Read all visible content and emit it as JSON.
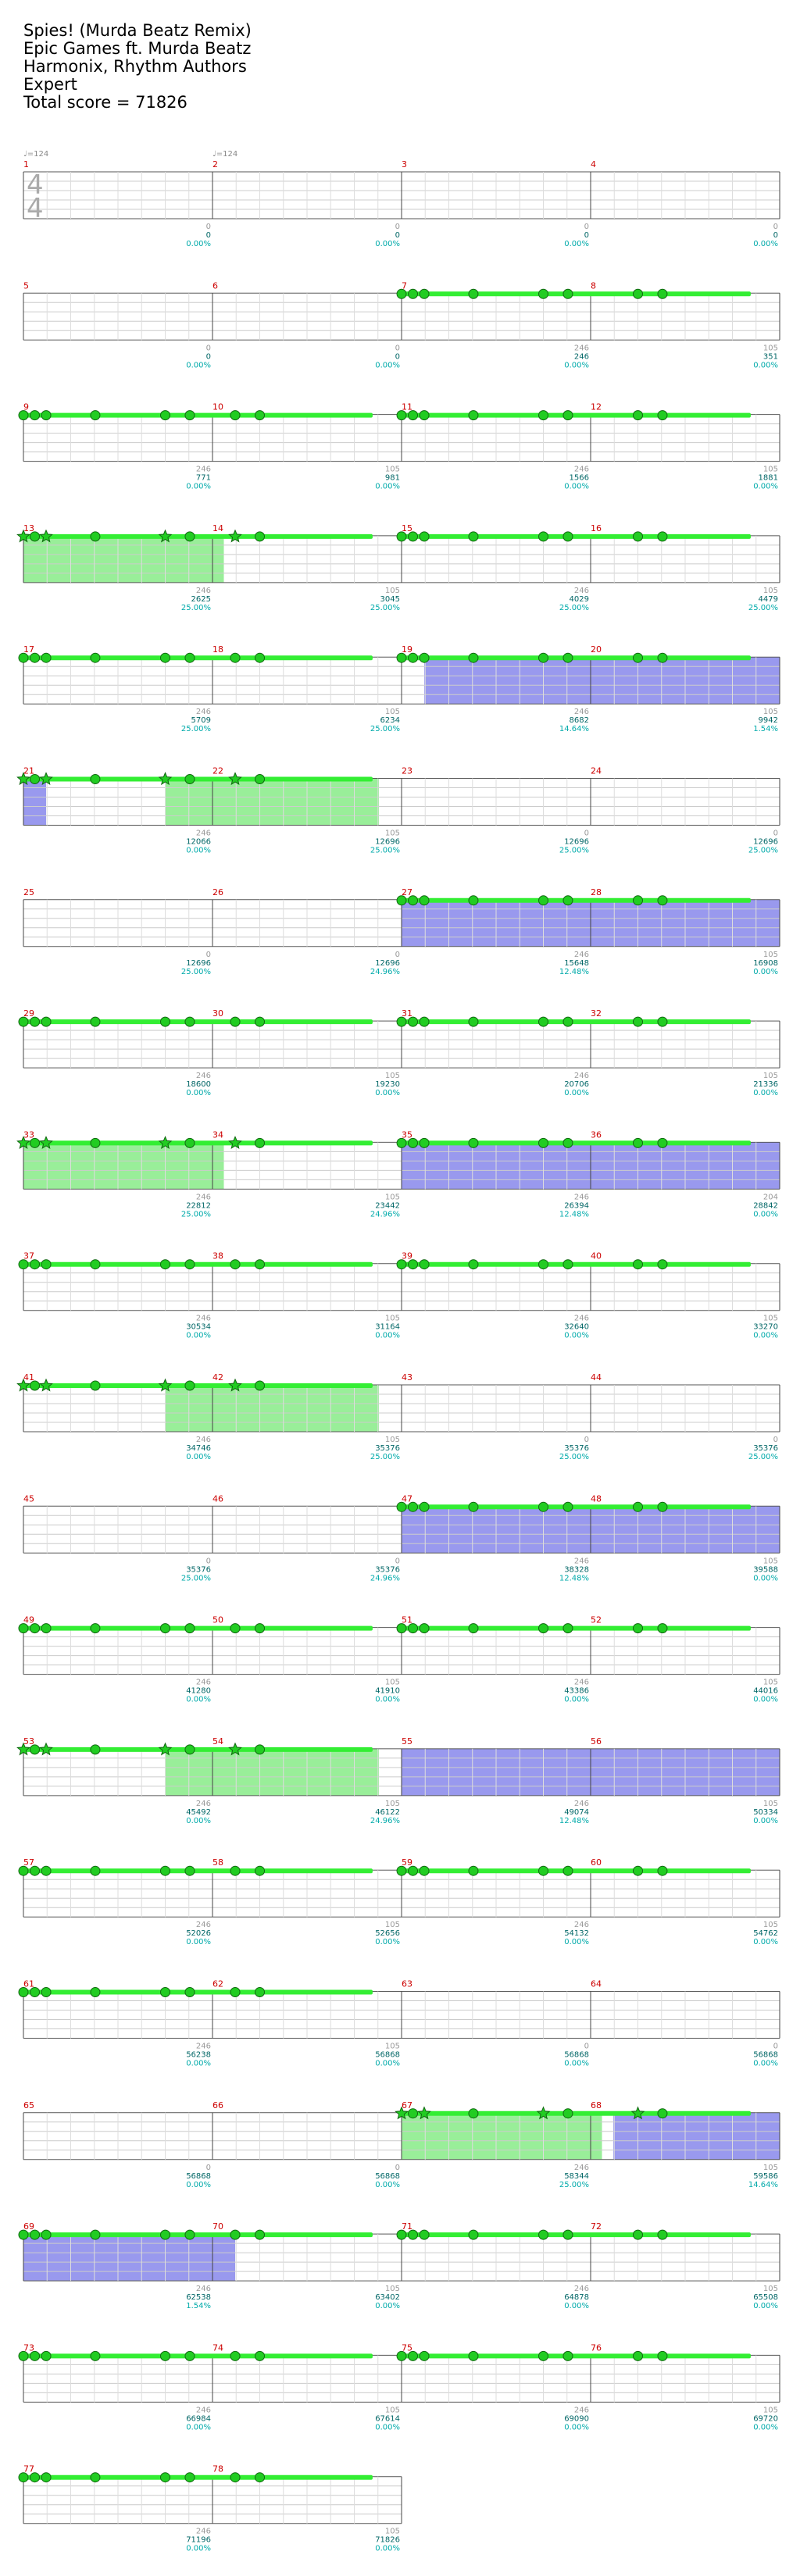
{
  "song": {
    "title": "Spies! (Murda Beatz Remix)",
    "artist": "Epic Games ft. Murda Beatz",
    "charter": "Harmonix, Rhythm Authors",
    "difficulty": "Expert",
    "total_score": "Total score = 71826"
  },
  "tempo_markers": [
    {
      "measure": 1,
      "label": "♩=124"
    },
    {
      "measure": 2,
      "label": "♩=124"
    }
  ],
  "time_signature": {
    "top": "4",
    "bottom": "4"
  },
  "colors": {
    "note": "#22cc22",
    "sustain": "#33ee33",
    "star_power": "#99ee99",
    "overdrive": "#9999ee",
    "measure_number": "#cc0000",
    "score": "#006666",
    "percent": "#00aaaa"
  },
  "pattern_a": [
    0,
    0.06,
    0.12,
    0.38,
    0.75,
    0.88,
    1.25,
    1.38
  ],
  "pattern_b": [
    0,
    0.06,
    0.12,
    0.38,
    0.75,
    0.88,
    1.12,
    1.25
  ],
  "lanes_in_pattern": {
    "pattern_a": [
      1,
      1,
      1,
      1,
      1,
      1,
      1,
      1
    ],
    "pattern_b": [
      1,
      1,
      1,
      1,
      1,
      1,
      1,
      1
    ]
  },
  "chart_data": {
    "type": "table",
    "systems": [
      {
        "measures": [
          1,
          2,
          3,
          4
        ],
        "notes": [],
        "sp_regions": [],
        "od_regions": [],
        "labels": [
          {
            "g": "0",
            "s": "0",
            "p": "0.00%"
          },
          {
            "g": "0",
            "s": "0",
            "p": "0.00%"
          },
          {
            "g": "0",
            "s": "0",
            "p": "0.00%"
          },
          {
            "g": "0",
            "s": "0",
            "p": "0.00%"
          }
        ]
      },
      {
        "measures": [
          5,
          6,
          7,
          8
        ],
        "notes": [
          {
            "start": 2,
            "pattern": "a",
            "stars": false
          }
        ],
        "sp_regions": [],
        "od_regions": [],
        "labels": [
          {
            "g": "0",
            "s": "0",
            "p": "0.00%"
          },
          {
            "g": "0",
            "s": "0",
            "p": "0.00%"
          },
          {
            "g": "246",
            "s": "246",
            "p": "0.00%"
          },
          {
            "g": "105",
            "s": "351",
            "p": "0.00%"
          }
        ]
      },
      {
        "measures": [
          9,
          10,
          11,
          12
        ],
        "notes": [
          {
            "start": 0,
            "pattern": "b",
            "stars": false
          },
          {
            "start": 2,
            "pattern": "a",
            "stars": false
          }
        ],
        "sp_regions": [],
        "od_regions": [],
        "labels": [
          {
            "g": "246",
            "s": "771",
            "p": "0.00%"
          },
          {
            "g": "105",
            "s": "981",
            "p": "0.00%"
          },
          {
            "g": "246",
            "s": "1566",
            "p": "0.00%"
          },
          {
            "g": "105",
            "s": "1881",
            "p": "0.00%"
          }
        ]
      },
      {
        "measures": [
          13,
          14,
          15,
          16
        ],
        "notes": [
          {
            "start": 0,
            "pattern": "b",
            "stars": true
          },
          {
            "start": 2,
            "pattern": "a",
            "stars": false
          }
        ],
        "sp_regions": [
          [
            0,
            1.06
          ]
        ],
        "od_regions": [],
        "labels": [
          {
            "g": "246",
            "s": "2625",
            "p": "25.00%"
          },
          {
            "g": "105",
            "s": "3045",
            "p": "25.00%"
          },
          {
            "g": "246",
            "s": "4029",
            "p": "25.00%"
          },
          {
            "g": "105",
            "s": "4479",
            "p": "25.00%"
          }
        ]
      },
      {
        "measures": [
          17,
          18,
          19,
          20
        ],
        "notes": [
          {
            "start": 0,
            "pattern": "b",
            "stars": false
          },
          {
            "start": 2,
            "pattern": "a",
            "stars": false
          }
        ],
        "sp_regions": [],
        "od_regions": [
          [
            2.12,
            4
          ]
        ],
        "labels": [
          {
            "g": "246",
            "s": "5709",
            "p": "25.00%"
          },
          {
            "g": "105",
            "s": "6234",
            "p": "25.00%"
          },
          {
            "g": "246",
            "s": "8682",
            "p": "14.64%"
          },
          {
            "g": "105",
            "s": "9942",
            "p": "1.54%"
          }
        ]
      },
      {
        "measures": [
          21,
          22,
          23,
          24
        ],
        "notes": [
          {
            "start": 0,
            "pattern": "b",
            "stars": true
          }
        ],
        "sp_regions": [
          [
            0.75,
            1.88
          ]
        ],
        "od_regions": [
          [
            0,
            0.12
          ]
        ],
        "labels": [
          {
            "g": "246",
            "s": "12066",
            "p": "0.00%"
          },
          {
            "g": "105",
            "s": "12696",
            "p": "25.00%"
          },
          {
            "g": "0",
            "s": "12696",
            "p": "25.00%"
          },
          {
            "g": "0",
            "s": "12696",
            "p": "25.00%"
          }
        ]
      },
      {
        "measures": [
          25,
          26,
          27,
          28
        ],
        "notes": [
          {
            "start": 2,
            "pattern": "a",
            "stars": false
          }
        ],
        "sp_regions": [],
        "od_regions": [
          [
            2,
            4
          ]
        ],
        "labels": [
          {
            "g": "0",
            "s": "12696",
            "p": "25.00%"
          },
          {
            "g": "0",
            "s": "12696",
            "p": "24.96%"
          },
          {
            "g": "246",
            "s": "15648",
            "p": "12.48%"
          },
          {
            "g": "105",
            "s": "16908",
            "p": "0.00%"
          }
        ]
      },
      {
        "measures": [
          29,
          30,
          31,
          32
        ],
        "notes": [
          {
            "start": 0,
            "pattern": "b",
            "stars": false
          },
          {
            "start": 2,
            "pattern": "a",
            "stars": false
          }
        ],
        "sp_regions": [],
        "od_regions": [],
        "labels": [
          {
            "g": "246",
            "s": "18600",
            "p": "0.00%"
          },
          {
            "g": "105",
            "s": "19230",
            "p": "0.00%"
          },
          {
            "g": "246",
            "s": "20706",
            "p": "0.00%"
          },
          {
            "g": "105",
            "s": "21336",
            "p": "0.00%"
          }
        ]
      },
      {
        "measures": [
          33,
          34,
          35,
          36
        ],
        "notes": [
          {
            "start": 0,
            "pattern": "b",
            "stars": true
          },
          {
            "start": 2,
            "pattern": "a",
            "stars": false
          }
        ],
        "sp_regions": [
          [
            0,
            1.06
          ]
        ],
        "od_regions": [
          [
            2,
            4
          ]
        ],
        "labels": [
          {
            "g": "246",
            "s": "22812",
            "p": "25.00%"
          },
          {
            "g": "105",
            "s": "23442",
            "p": "24.96%"
          },
          {
            "g": "246",
            "s": "26394",
            "p": "12.48%"
          },
          {
            "g": "204",
            "s": "28842",
            "p": "0.00%"
          }
        ]
      },
      {
        "measures": [
          37,
          38,
          39,
          40
        ],
        "notes": [
          {
            "start": 0,
            "pattern": "b",
            "stars": false
          },
          {
            "start": 2,
            "pattern": "a",
            "stars": false
          }
        ],
        "sp_regions": [],
        "od_regions": [],
        "labels": [
          {
            "g": "246",
            "s": "30534",
            "p": "0.00%"
          },
          {
            "g": "105",
            "s": "31164",
            "p": "0.00%"
          },
          {
            "g": "246",
            "s": "32640",
            "p": "0.00%"
          },
          {
            "g": "105",
            "s": "33270",
            "p": "0.00%"
          }
        ]
      },
      {
        "measures": [
          41,
          42,
          43,
          44
        ],
        "notes": [
          {
            "start": 0,
            "pattern": "b",
            "stars": true
          }
        ],
        "sp_regions": [
          [
            0.75,
            1.88
          ]
        ],
        "od_regions": [],
        "labels": [
          {
            "g": "246",
            "s": "34746",
            "p": "0.00%"
          },
          {
            "g": "105",
            "s": "35376",
            "p": "25.00%"
          },
          {
            "g": "0",
            "s": "35376",
            "p": "25.00%"
          },
          {
            "g": "0",
            "s": "35376",
            "p": "25.00%"
          }
        ]
      },
      {
        "measures": [
          45,
          46,
          47,
          48
        ],
        "notes": [
          {
            "start": 2,
            "pattern": "a",
            "stars": false
          }
        ],
        "sp_regions": [],
        "od_regions": [
          [
            2,
            4
          ]
        ],
        "labels": [
          {
            "g": "0",
            "s": "35376",
            "p": "25.00%"
          },
          {
            "g": "0",
            "s": "35376",
            "p": "24.96%"
          },
          {
            "g": "246",
            "s": "38328",
            "p": "12.48%"
          },
          {
            "g": "105",
            "s": "39588",
            "p": "0.00%"
          }
        ]
      },
      {
        "measures": [
          49,
          50,
          51,
          52
        ],
        "notes": [
          {
            "start": 0,
            "pattern": "b",
            "stars": false
          },
          {
            "start": 2,
            "pattern": "a",
            "stars": false
          }
        ],
        "sp_regions": [],
        "od_regions": [],
        "labels": [
          {
            "g": "246",
            "s": "41280",
            "p": "0.00%"
          },
          {
            "g": "105",
            "s": "41910",
            "p": "0.00%"
          },
          {
            "g": "246",
            "s": "43386",
            "p": "0.00%"
          },
          {
            "g": "105",
            "s": "44016",
            "p": "0.00%"
          }
        ]
      },
      {
        "measures": [
          53,
          54,
          55,
          56
        ],
        "notes": [
          {
            "start": 0,
            "pattern": "b",
            "stars": true
          }
        ],
        "sp_regions": [
          [
            0.75,
            1.88
          ]
        ],
        "od_regions": [
          [
            2,
            4
          ]
        ],
        "labels": [
          {
            "g": "246",
            "s": "45492",
            "p": "0.00%"
          },
          {
            "g": "105",
            "s": "46122",
            "p": "24.96%"
          },
          {
            "g": "246",
            "s": "49074",
            "p": "12.48%"
          },
          {
            "g": "105",
            "s": "50334",
            "p": "0.00%"
          }
        ]
      },
      {
        "measures": [
          57,
          58,
          59,
          60
        ],
        "notes": [
          {
            "start": 0,
            "pattern": "b",
            "stars": false
          },
          {
            "start": 2,
            "pattern": "a",
            "stars": false
          }
        ],
        "sp_regions": [],
        "od_regions": [],
        "labels": [
          {
            "g": "246",
            "s": "52026",
            "p": "0.00%"
          },
          {
            "g": "105",
            "s": "52656",
            "p": "0.00%"
          },
          {
            "g": "246",
            "s": "54132",
            "p": "0.00%"
          },
          {
            "g": "105",
            "s": "54762",
            "p": "0.00%"
          }
        ]
      },
      {
        "measures": [
          61,
          62,
          63,
          64
        ],
        "notes": [
          {
            "start": 0,
            "pattern": "b",
            "stars": false
          }
        ],
        "sp_regions": [],
        "od_regions": [],
        "labels": [
          {
            "g": "246",
            "s": "56238",
            "p": "0.00%"
          },
          {
            "g": "105",
            "s": "56868",
            "p": "0.00%"
          },
          {
            "g": "0",
            "s": "56868",
            "p": "0.00%"
          },
          {
            "g": "0",
            "s": "56868",
            "p": "0.00%"
          }
        ]
      },
      {
        "measures": [
          65,
          66,
          67,
          68
        ],
        "notes": [
          {
            "start": 2,
            "pattern": "a",
            "stars": true
          }
        ],
        "sp_regions": [
          [
            2,
            3.06
          ]
        ],
        "od_regions": [
          [
            3.12,
            4
          ]
        ],
        "labels": [
          {
            "g": "0",
            "s": "56868",
            "p": "0.00%"
          },
          {
            "g": "0",
            "s": "56868",
            "p": "0.00%"
          },
          {
            "g": "246",
            "s": "58344",
            "p": "25.00%"
          },
          {
            "g": "105",
            "s": "59586",
            "p": "14.64%"
          }
        ]
      },
      {
        "measures": [
          69,
          70,
          71,
          72
        ],
        "notes": [
          {
            "start": 0,
            "pattern": "b",
            "stars": false
          },
          {
            "start": 2,
            "pattern": "a",
            "stars": false
          }
        ],
        "sp_regions": [],
        "od_regions": [
          [
            0,
            1.12
          ]
        ],
        "labels": [
          {
            "g": "246",
            "s": "62538",
            "p": "1.54%"
          },
          {
            "g": "105",
            "s": "63402",
            "p": "0.00%"
          },
          {
            "g": "246",
            "s": "64878",
            "p": "0.00%"
          },
          {
            "g": "105",
            "s": "65508",
            "p": "0.00%"
          }
        ]
      },
      {
        "measures": [
          73,
          74,
          75,
          76
        ],
        "notes": [
          {
            "start": 0,
            "pattern": "b",
            "stars": false
          },
          {
            "start": 2,
            "pattern": "a",
            "stars": false
          }
        ],
        "sp_regions": [],
        "od_regions": [],
        "labels": [
          {
            "g": "246",
            "s": "66984",
            "p": "0.00%"
          },
          {
            "g": "105",
            "s": "67614",
            "p": "0.00%"
          },
          {
            "g": "246",
            "s": "69090",
            "p": "0.00%"
          },
          {
            "g": "105",
            "s": "69720",
            "p": "0.00%"
          }
        ]
      },
      {
        "measures": [
          77,
          78
        ],
        "notes": [
          {
            "start": 0,
            "pattern": "b",
            "stars": false
          }
        ],
        "sp_regions": [],
        "od_regions": [],
        "labels": [
          {
            "g": "246",
            "s": "71196",
            "p": "0.00%"
          },
          {
            "g": "105",
            "s": "71826",
            "p": "0.00%"
          }
        ]
      }
    ]
  }
}
